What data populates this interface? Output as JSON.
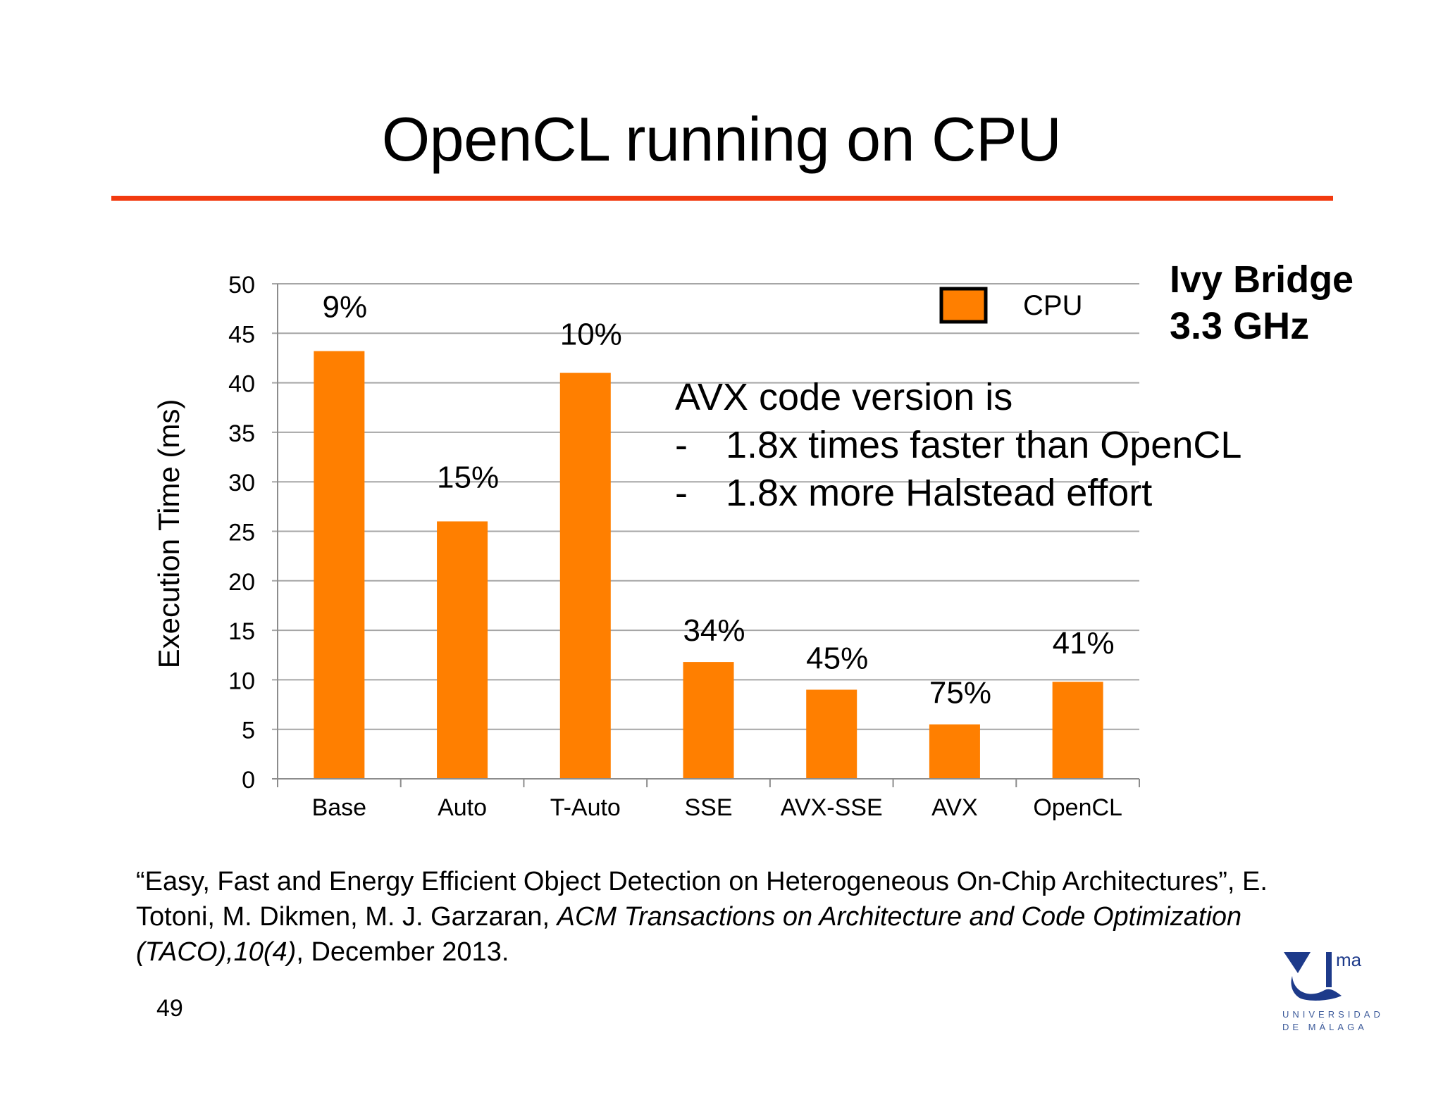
{
  "slide": {
    "title": "OpenCL running on CPU",
    "page_number": "49",
    "side_note": {
      "line1": "Ivy Bridge",
      "line2": "3.3 GHz"
    },
    "avx_note": {
      "heading": "AVX code version is",
      "bullets": [
        "1.8x times faster than OpenCL",
        "1.8x more Halstead effort"
      ],
      "bullet_marker": "-"
    },
    "citation": {
      "quoted_title": "“Easy, Fast and Energy Efficient Object Detection on Heterogeneous On-Chip Architectures”, E. Totoni, M. Dikmen, M. J. Garzaran, ",
      "journal": "ACM Transactions on Architecture and Code Optimization (TACO),10(4)",
      "date": ", December 2013."
    },
    "logo": {
      "mark": "ma",
      "line1": "UNIVERSIDAD",
      "line2": "DE MÁLAGA"
    }
  },
  "colors": {
    "bar": "#ff7f00",
    "title_rule": "#f23a0f",
    "gridline": "#a6a6a6",
    "logo_blue": "#1d3a8a"
  },
  "chart_data": {
    "type": "bar",
    "categories": [
      "Base",
      "Auto",
      "T-Auto",
      "SSE",
      "AVX-SSE",
      "AVX",
      "OpenCL"
    ],
    "series": [
      {
        "name": "CPU",
        "values": [
          43.2,
          26.0,
          41.0,
          11.8,
          9.0,
          5.5,
          9.8
        ],
        "labels": [
          "9%",
          "15%",
          "10%",
          "34%",
          "45%",
          "75%",
          "41%"
        ]
      }
    ],
    "ylabel": "Execution Time (ms)",
    "xlabel": "",
    "ylim": [
      0,
      50
    ],
    "yticks": [
      0,
      5,
      10,
      15,
      20,
      25,
      30,
      35,
      40,
      45,
      50
    ],
    "grid": true,
    "legend": "top-right"
  }
}
